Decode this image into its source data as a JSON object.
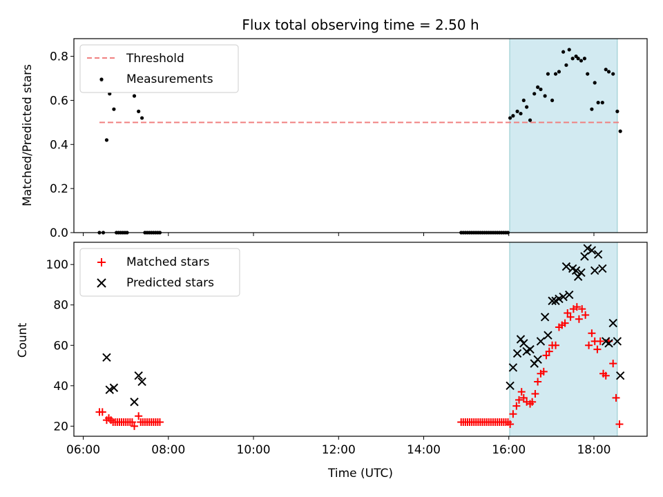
{
  "figure": {
    "title": "Flux total observing time = 2.50 h",
    "xlabel": "Time (UTC)"
  },
  "colors": {
    "threshold": "#f08080",
    "measurement": "#000000",
    "matched": "#ff0000",
    "predicted": "#000000",
    "shaded_region": "#add8e6"
  },
  "chart_data": [
    {
      "type": "scatter",
      "panel": "top",
      "xlabel": "",
      "ylabel": "Matched/Predicted stars",
      "xlim": [
        5.78,
        19.25
      ],
      "ylim": [
        0.0,
        0.88
      ],
      "yticks": [
        0.0,
        0.2,
        0.4,
        0.6,
        0.8
      ],
      "ytick_labels": [
        "0.0",
        "0.2",
        "0.4",
        "0.6",
        "0.8"
      ],
      "grid": false,
      "legend": "top-left",
      "shaded_span": [
        16.02,
        18.55
      ],
      "threshold": {
        "name": "Threshold",
        "value": 0.5,
        "x_range": [
          6.38,
          18.63
        ],
        "style": "dashed"
      },
      "series": [
        {
          "name": "Measurements",
          "marker": "dot",
          "x": [
            6.38,
            6.43,
            6.47,
            6.55,
            6.62,
            6.72,
            6.78,
            6.83,
            6.88,
            6.93,
            6.98,
            7.03,
            7.2,
            7.3,
            7.38,
            7.45,
            7.5,
            7.55,
            7.6,
            7.65,
            7.7,
            7.75,
            7.8,
            14.88,
            14.93,
            14.98,
            15.03,
            15.08,
            15.13,
            15.18,
            15.23,
            15.28,
            15.33,
            15.38,
            15.43,
            15.48,
            15.53,
            15.58,
            15.63,
            15.68,
            15.73,
            15.78,
            15.83,
            15.88,
            15.93,
            15.98,
            16.03,
            16.1,
            16.2,
            16.28,
            16.35,
            16.42,
            16.5,
            16.6,
            16.68,
            16.75,
            16.85,
            16.92,
            17.02,
            17.1,
            17.18,
            17.28,
            17.35,
            17.42,
            17.5,
            17.58,
            17.63,
            17.7,
            17.78,
            17.85,
            17.95,
            18.02,
            18.1,
            18.2,
            18.28,
            18.35,
            18.45,
            18.55,
            18.62
          ],
          "y": [
            0,
            0.69,
            0,
            0.42,
            0.63,
            0.56,
            0,
            0,
            0,
            0,
            0,
            0,
            0.62,
            0.55,
            0.52,
            0,
            0,
            0,
            0,
            0,
            0,
            0,
            0,
            0,
            0,
            0,
            0,
            0,
            0,
            0,
            0,
            0,
            0,
            0,
            0,
            0,
            0,
            0,
            0,
            0,
            0,
            0,
            0,
            0,
            0,
            0,
            0.52,
            0.53,
            0.55,
            0.54,
            0.6,
            0.57,
            0.51,
            0.63,
            0.66,
            0.65,
            0.62,
            0.72,
            0.6,
            0.72,
            0.73,
            0.82,
            0.76,
            0.83,
            0.79,
            0.8,
            0.79,
            0.78,
            0.79,
            0.72,
            0.56,
            0.68,
            0.59,
            0.59,
            0.74,
            0.73,
            0.72,
            0.55,
            0.46
          ]
        }
      ]
    },
    {
      "type": "scatter",
      "panel": "bottom",
      "xlabel": "Time (UTC)",
      "ylabel": "Count",
      "xlim": [
        5.78,
        19.25
      ],
      "ylim": [
        15,
        111
      ],
      "yticks": [
        20,
        40,
        60,
        80,
        100
      ],
      "ytick_labels": [
        "20",
        "40",
        "60",
        "80",
        "100"
      ],
      "xticks": [
        6,
        8,
        10,
        12,
        14,
        16,
        18
      ],
      "xtick_labels": [
        "06:00",
        "08:00",
        "10:00",
        "12:00",
        "14:00",
        "16:00",
        "18:00"
      ],
      "grid": false,
      "legend": "top-left",
      "shaded_span": [
        16.02,
        18.55
      ],
      "series": [
        {
          "name": "Matched stars",
          "marker": "plus",
          "x": [
            6.38,
            6.45,
            6.55,
            6.6,
            6.65,
            6.7,
            6.75,
            6.8,
            6.85,
            6.9,
            6.95,
            7.0,
            7.05,
            7.1,
            7.15,
            7.2,
            7.3,
            7.35,
            7.4,
            7.45,
            7.5,
            7.55,
            7.6,
            7.65,
            7.7,
            7.75,
            7.8,
            14.88,
            14.93,
            14.98,
            15.03,
            15.08,
            15.13,
            15.18,
            15.23,
            15.28,
            15.33,
            15.38,
            15.43,
            15.48,
            15.53,
            15.58,
            15.63,
            15.68,
            15.73,
            15.78,
            15.83,
            15.88,
            15.93,
            15.98,
            16.03,
            16.1,
            16.18,
            16.24,
            16.3,
            16.35,
            16.42,
            16.5,
            16.55,
            16.62,
            16.68,
            16.75,
            16.82,
            16.88,
            16.95,
            17.02,
            17.1,
            17.18,
            17.25,
            17.32,
            17.38,
            17.45,
            17.52,
            17.6,
            17.65,
            17.72,
            17.8,
            17.88,
            17.95,
            18.02,
            18.08,
            18.15,
            18.22,
            18.28,
            18.35,
            18.45,
            18.52,
            18.6
          ],
          "y": [
            27,
            27,
            23,
            24,
            23,
            22,
            22,
            22,
            22,
            22,
            22,
            22,
            22,
            22,
            22,
            20,
            25,
            22,
            22,
            22,
            22,
            22,
            22,
            22,
            22,
            22,
            22,
            22,
            22,
            22,
            22,
            22,
            22,
            22,
            22,
            22,
            22,
            22,
            22,
            22,
            22,
            22,
            22,
            22,
            22,
            22,
            22,
            22,
            22,
            22,
            21,
            26,
            30,
            33,
            37,
            34,
            32,
            31,
            32,
            36,
            42,
            46,
            47,
            55,
            57,
            60,
            60,
            69,
            70,
            71,
            76,
            74,
            78,
            79,
            73,
            78,
            75,
            60,
            66,
            62,
            58,
            62,
            46,
            45,
            62,
            51,
            34,
            21
          ]
        },
        {
          "name": "Predicted stars",
          "marker": "x",
          "x": [
            6.55,
            6.62,
            6.72,
            7.2,
            7.3,
            7.38,
            16.03,
            16.1,
            16.2,
            16.28,
            16.35,
            16.42,
            16.5,
            16.6,
            16.68,
            16.75,
            16.85,
            16.92,
            17.02,
            17.1,
            17.18,
            17.28,
            17.35,
            17.42,
            17.5,
            17.58,
            17.63,
            17.7,
            17.78,
            17.85,
            17.95,
            18.02,
            18.1,
            18.2,
            18.28,
            18.35,
            18.45,
            18.55,
            18.62
          ],
          "y": [
            54,
            38,
            39,
            32,
            45,
            42,
            40,
            49,
            56,
            63,
            61,
            57,
            58,
            51,
            53,
            62,
            74,
            65,
            82,
            82,
            83,
            84,
            99,
            85,
            98,
            97,
            94,
            96,
            104,
            108,
            107,
            97,
            105,
            98,
            62,
            61,
            71,
            62,
            45
          ]
        }
      ]
    }
  ]
}
